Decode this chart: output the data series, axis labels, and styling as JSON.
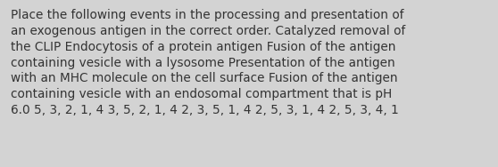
{
  "text": "Place the following events in the processing and presentation of\nan exogenous antigen in the correct order. Catalyzed removal of\nthe CLIP Endocytosis of a protein antigen Fusion of the antigen\ncontaining vesicle with a lysosome Presentation of the antigen\nwith an MHC molecule on the cell surface Fusion of the antigen\ncontaining vesicle with an endosomal compartment that is pH\n6.0 5, 3, 2, 1, 4 3, 5, 2, 1, 4 2, 3, 5, 1, 4 2, 5, 3, 1, 4 2, 5, 3, 4, 1",
  "background_color": "#d3d3d3",
  "text_color": "#333333",
  "font_size": 9.8,
  "fig_width": 5.58,
  "fig_height": 1.88,
  "dpi": 100
}
